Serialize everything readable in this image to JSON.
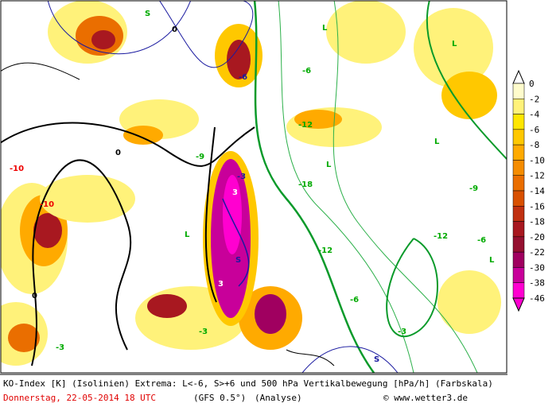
{
  "colorbar": {
    "labels": [
      "0",
      "-2",
      "-4",
      "-6",
      "-8",
      "-10",
      "-12",
      "-14",
      "-16",
      "-18",
      "-20",
      "-22",
      "-30",
      "-38",
      "-46"
    ],
    "colors": [
      "#fffccc",
      "#fff27a",
      "#ffe600",
      "#ffc800",
      "#ffaa00",
      "#f58c00",
      "#ea6e00",
      "#d85000",
      "#c03010",
      "#a81820",
      "#951030",
      "#a00060",
      "#c8009a",
      "#ff00d0"
    ]
  },
  "map_labels": [
    "S",
    "L",
    "L",
    "S",
    "L",
    "L",
    "L",
    "-6",
    "-3",
    "-9",
    "-12",
    "-18",
    "-6",
    "0",
    "0",
    "0",
    "-10",
    "-10",
    "-3",
    "-6",
    "3",
    "3",
    "S",
    "-12",
    "-3",
    "-6",
    "L",
    "-12",
    "-9",
    "-3"
  ],
  "footer": {
    "line1": "KO-Index [K] (Isolinien) Extrema: L<-6, S>+6 und 500 hPa Vertikalbewegung [hPa/h] (Farbskala)",
    "date": "Donnerstag, 22-05-2014  18 UTC",
    "model": "(GFS 0.5°)",
    "analysis": "(Analyse)",
    "copyright": "© www.wetter3.de"
  }
}
